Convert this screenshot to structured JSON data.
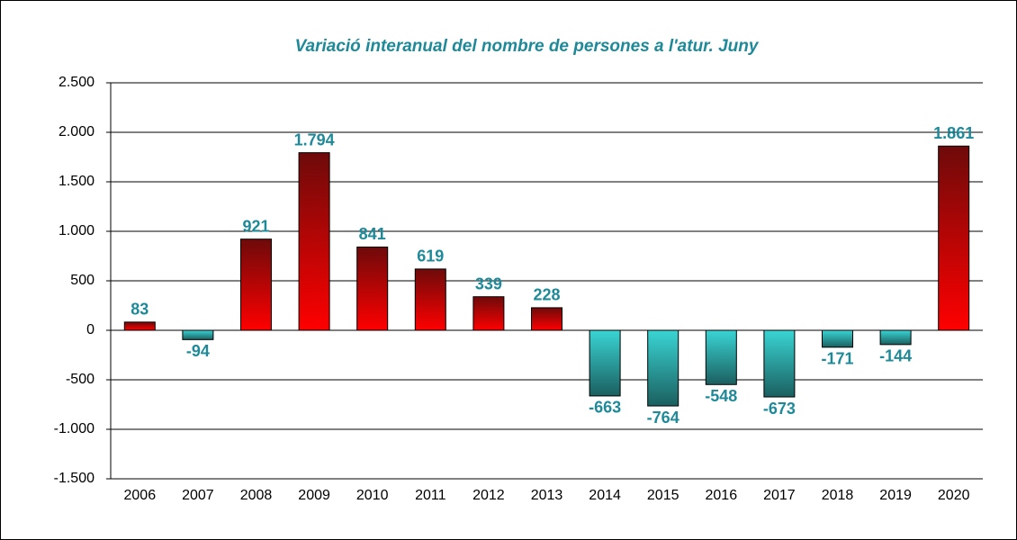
{
  "chart_data": {
    "type": "bar",
    "title": "Variació interanual del nombre de persones  a l'atur. Juny",
    "categories": [
      "2006",
      "2007",
      "2008",
      "2009",
      "2010",
      "2011",
      "2012",
      "2013",
      "2014",
      "2015",
      "2016",
      "2017",
      "2018",
      "2019",
      "2020"
    ],
    "values": [
      83,
      -94,
      921,
      1794,
      841,
      619,
      339,
      228,
      -663,
      -764,
      -548,
      -673,
      -171,
      -144,
      1861
    ],
    "value_labels": [
      "83",
      "-94",
      "921",
      "1.794",
      "841",
      "619",
      "339",
      "228",
      "-663",
      "-764",
      "-548",
      "-673",
      "-171",
      "-144",
      "1.861"
    ],
    "colors": {
      "positive": [
        "#6e0a0a",
        "#ff0000"
      ],
      "negative": [
        "#3ad4d4",
        "#1b5f5f"
      ]
    },
    "ylim": [
      -1500,
      2500
    ],
    "yticks": [
      {
        "value": -1500,
        "label": "-1.500"
      },
      {
        "value": -1000,
        "label": "-1.000"
      },
      -500,
      0,
      500,
      {
        "value": 1000,
        "label": "1.000"
      },
      {
        "value": 1500,
        "label": "1.500"
      },
      {
        "value": 2000,
        "label": "2.000"
      },
      {
        "value": 2500,
        "label": "2.500"
      }
    ],
    "grid": true
  }
}
